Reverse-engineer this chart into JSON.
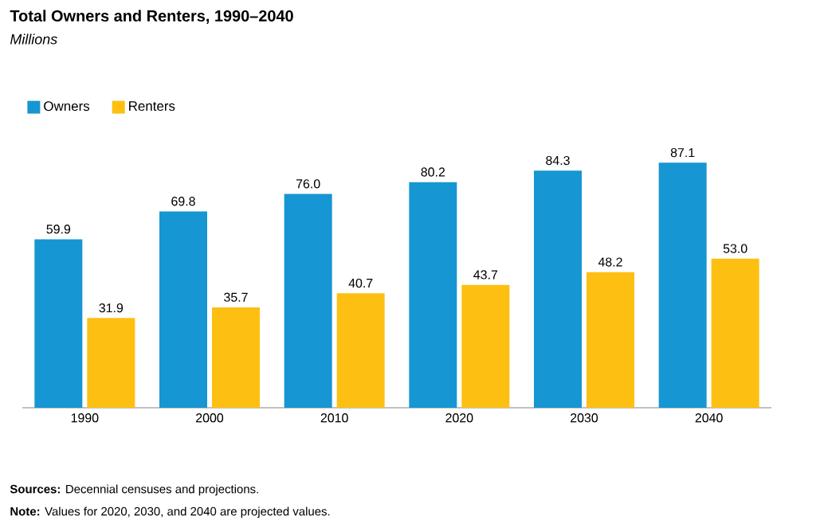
{
  "chart_data": {
    "type": "bar",
    "title": "Total Owners and Renters, 1990–2040",
    "subtitle": "Millions",
    "categories": [
      "1990",
      "2000",
      "2010",
      "2020",
      "2030",
      "2040"
    ],
    "series": [
      {
        "name": "Owners",
        "color": "#1696d2",
        "values": [
          59.9,
          69.8,
          76.0,
          80.2,
          84.3,
          87.1
        ],
        "value_labels": [
          "59.9",
          "69.8",
          "76.0",
          "80.2",
          "84.3",
          "87.1"
        ]
      },
      {
        "name": "Renters",
        "color": "#fdbf11",
        "values": [
          31.9,
          35.7,
          40.7,
          43.7,
          48.2,
          53.0
        ],
        "value_labels": [
          "31.9",
          "35.7",
          "40.7",
          "43.7",
          "48.2",
          "53.0"
        ]
      }
    ],
    "legend": "top left",
    "tick_labels": "x",
    "annotations": [
      "**Sources:** Decennial censuses and projections.",
      "**Note:** Values for 2020, 2030, and 2040 are projected values."
    ]
  }
}
